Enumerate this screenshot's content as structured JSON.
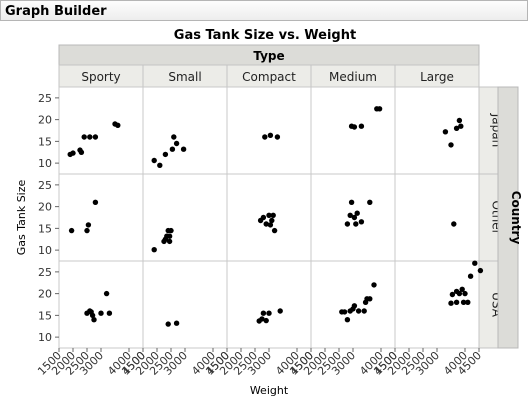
{
  "window": {
    "title": "Graph Builder"
  },
  "chart_data": {
    "type": "scatter",
    "title": "Gas Tank Size vs. Weight",
    "xlabel": "Weight",
    "ylabel": "Gas Tank Size",
    "column_group_label": "Type",
    "row_group_label": "Country",
    "columns": [
      "Sporty",
      "Small",
      "Compact",
      "Medium",
      "Large"
    ],
    "rows": [
      "Japan",
      "Other",
      "USA"
    ],
    "x_ticks": [
      1500,
      2000,
      2500,
      3000,
      4000,
      4500
    ],
    "x_tick_labels": [
      "1500",
      "2000",
      "2500",
      "3000",
      "4000",
      "4500"
    ],
    "y_ticks": [
      10,
      15,
      20,
      25
    ],
    "y_tick_labels": [
      "10",
      "15",
      "20",
      "25"
    ],
    "xlim": [
      1500,
      4500
    ],
    "ylim": [
      7.5,
      27.5
    ],
    "grid": false,
    "point_color": "#000000",
    "panels": [
      {
        "row": "Japan",
        "column": "Sporty",
        "points": [
          [
            1900,
            12
          ],
          [
            2000,
            12.3
          ],
          [
            2250,
            13
          ],
          [
            2300,
            12.5
          ],
          [
            2400,
            16
          ],
          [
            2600,
            16
          ],
          [
            2800,
            16
          ],
          [
            3500,
            19
          ],
          [
            3600,
            18.7
          ]
        ]
      },
      {
        "row": "Japan",
        "column": "Small",
        "points": [
          [
            1900,
            10.6
          ],
          [
            2100,
            9.5
          ],
          [
            2300,
            12
          ],
          [
            2550,
            13.2
          ],
          [
            2700,
            14.5
          ],
          [
            2950,
            13.2
          ],
          [
            2600,
            16
          ]
        ]
      },
      {
        "row": "Japan",
        "column": "Compact",
        "points": [
          [
            2850,
            16
          ],
          [
            3050,
            16.4
          ],
          [
            3300,
            16
          ]
        ]
      },
      {
        "row": "Japan",
        "column": "Medium",
        "points": [
          [
            2950,
            18.5
          ],
          [
            3050,
            18.3
          ],
          [
            3300,
            18.5
          ],
          [
            3850,
            22.5
          ],
          [
            3950,
            22.5
          ]
        ]
      },
      {
        "row": "Japan",
        "column": "Large",
        "points": [
          [
            3300,
            17.2
          ],
          [
            3500,
            14.2
          ],
          [
            3700,
            18
          ],
          [
            3800,
            19.8
          ],
          [
            3850,
            18.5
          ]
        ]
      },
      {
        "row": "Other",
        "column": "Sporty",
        "points": [
          [
            1950,
            14.5
          ],
          [
            2500,
            14.5
          ],
          [
            2550,
            15.8
          ],
          [
            2800,
            21
          ]
        ]
      },
      {
        "row": "Other",
        "column": "Small",
        "points": [
          [
            1900,
            10.1
          ],
          [
            2250,
            12
          ],
          [
            2300,
            12.5
          ],
          [
            2350,
            13.2
          ],
          [
            2450,
            12
          ],
          [
            2400,
            14.5
          ],
          [
            2500,
            14.5
          ],
          [
            2450,
            13.2
          ]
        ]
      },
      {
        "row": "Other",
        "column": "Compact",
        "points": [
          [
            2700,
            16.8
          ],
          [
            2800,
            17.5
          ],
          [
            2900,
            16
          ],
          [
            3000,
            18
          ],
          [
            3100,
            16.8
          ],
          [
            3050,
            15.8
          ],
          [
            3200,
            14.5
          ],
          [
            3150,
            18
          ]
        ]
      },
      {
        "row": "Other",
        "column": "Medium",
        "points": [
          [
            2800,
            16
          ],
          [
            2900,
            18
          ],
          [
            2950,
            21
          ],
          [
            3050,
            17.5
          ],
          [
            3100,
            16
          ],
          [
            3150,
            18.5
          ],
          [
            3300,
            16.5
          ],
          [
            3600,
            21
          ]
        ]
      },
      {
        "row": "Other",
        "column": "Large",
        "points": [
          [
            3600,
            16
          ]
        ]
      },
      {
        "row": "USA",
        "column": "Sporty",
        "points": [
          [
            2500,
            15.5
          ],
          [
            2600,
            16
          ],
          [
            2700,
            15
          ],
          [
            2750,
            14
          ],
          [
            2650,
            15.8
          ],
          [
            3000,
            15.5
          ],
          [
            3200,
            20
          ],
          [
            3300,
            15.5
          ]
        ]
      },
      {
        "row": "USA",
        "column": "Small",
        "points": [
          [
            2400,
            13
          ],
          [
            2700,
            13.2
          ]
        ]
      },
      {
        "row": "USA",
        "column": "Compact",
        "points": [
          [
            2650,
            13.7
          ],
          [
            2750,
            14.2
          ],
          [
            2800,
            15.5
          ],
          [
            2900,
            13.8
          ],
          [
            3000,
            15.5
          ],
          [
            3400,
            16
          ]
        ]
      },
      {
        "row": "USA",
        "column": "Medium",
        "points": [
          [
            2600,
            15.8
          ],
          [
            2700,
            15.8
          ],
          [
            2800,
            14
          ],
          [
            2900,
            16
          ],
          [
            3000,
            16.5
          ],
          [
            3050,
            17.2
          ],
          [
            3200,
            16
          ],
          [
            3400,
            16
          ],
          [
            3450,
            18
          ],
          [
            3500,
            18.8
          ],
          [
            3600,
            18.8
          ],
          [
            3750,
            22
          ]
        ]
      },
      {
        "row": "USA",
        "column": "Large",
        "points": [
          [
            3500,
            17.8
          ],
          [
            3550,
            19.8
          ],
          [
            3700,
            18
          ],
          [
            3800,
            20
          ],
          [
            3900,
            21
          ],
          [
            3950,
            18
          ],
          [
            4000,
            20
          ],
          [
            4100,
            18
          ],
          [
            4200,
            24
          ],
          [
            4350,
            27
          ],
          [
            4550,
            25.3
          ],
          [
            3700,
            20.5
          ]
        ]
      }
    ]
  }
}
